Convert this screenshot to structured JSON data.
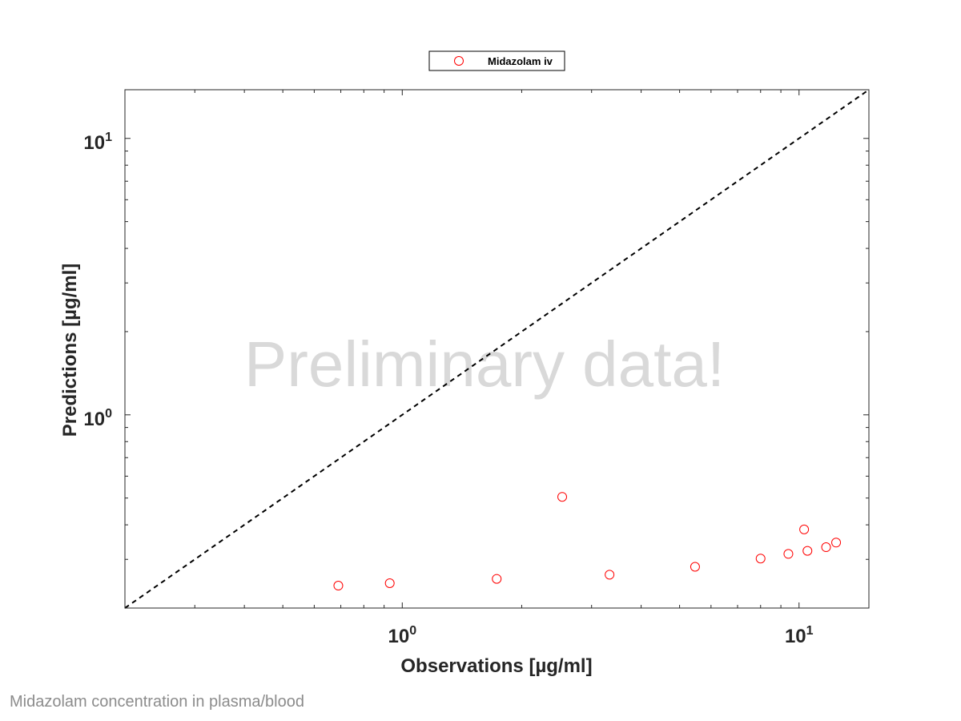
{
  "chart_data": {
    "type": "scatter",
    "xlabel": "Observations [µg/ml]",
    "ylabel": "Predictions [µg/ml]",
    "x_scale": "log",
    "y_scale": "log",
    "xlim": [
      0.2,
      15
    ],
    "ylim": [
      0.2,
      15
    ],
    "x_ticks": [
      {
        "value": 1,
        "base": "10",
        "exp": "0"
      },
      {
        "value": 10,
        "base": "10",
        "exp": "1"
      }
    ],
    "y_ticks": [
      {
        "value": 1,
        "base": "10",
        "exp": "0"
      },
      {
        "value": 10,
        "base": "10",
        "exp": "1"
      }
    ],
    "grid": false,
    "legend_position": "top-center outside",
    "reference_line": {
      "type": "identity",
      "style": "dashed",
      "color": "#000000"
    },
    "series": [
      {
        "name": "Midazolam iv",
        "marker": "open-circle",
        "color": "#ff0000",
        "points": [
          {
            "x": 0.69,
            "y": 0.241
          },
          {
            "x": 0.93,
            "y": 0.246
          },
          {
            "x": 1.73,
            "y": 0.255
          },
          {
            "x": 2.53,
            "y": 0.505
          },
          {
            "x": 3.33,
            "y": 0.264
          },
          {
            "x": 5.47,
            "y": 0.282
          },
          {
            "x": 8.0,
            "y": 0.302
          },
          {
            "x": 9.4,
            "y": 0.314
          },
          {
            "x": 10.3,
            "y": 0.385
          },
          {
            "x": 10.5,
            "y": 0.322
          },
          {
            "x": 11.7,
            "y": 0.332
          },
          {
            "x": 12.4,
            "y": 0.345
          }
        ]
      }
    ],
    "watermark": "Preliminary data!"
  },
  "caption": "Midazolam concentration in plasma/blood",
  "colors": {
    "marker": "#ff0000",
    "axes": "#262626",
    "watermark": "#d9d9d9",
    "caption": "#8c8c8c"
  }
}
